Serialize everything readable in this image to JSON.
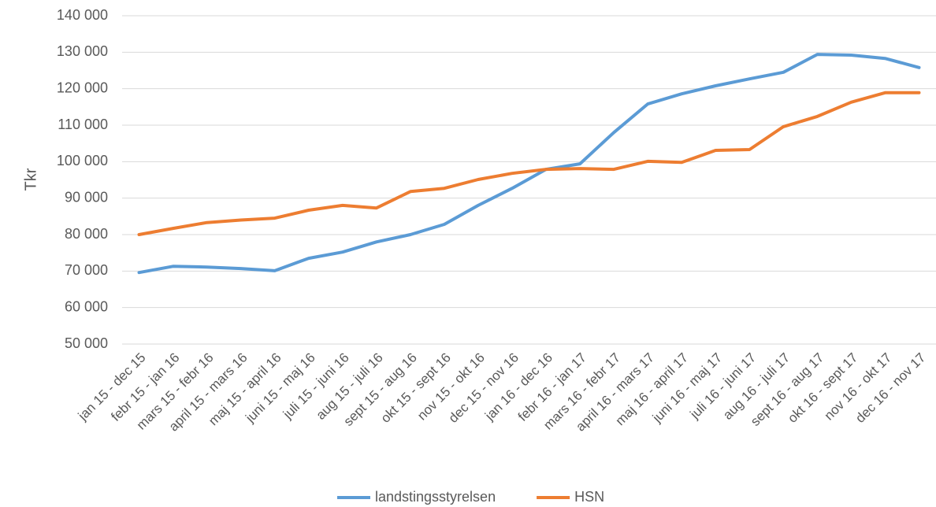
{
  "chart_data": {
    "type": "line",
    "y_label": "Tkr",
    "categories": [
      "jan 15 - dec 15",
      "febr 15 - jan 16",
      "mars 15 - febr 16",
      "april 15 - mars 16",
      "maj 15 - april 16",
      "juni 15 - maj 16",
      "juli 15 - juni 16",
      "aug 15 - juli 16",
      "sept 15 - aug 16",
      "okt 15 - sept 16",
      "nov 15 - okt 16",
      "dec 15 - nov 16",
      "jan 16 - dec 16",
      "febr 16 - jan 17",
      "mars 16 - febr 17",
      "april 16 - mars 17",
      "maj 16 - april 17",
      "juni 16 - maj 17",
      "juli 16 - juni 17",
      "aug 16 - juli 17",
      "sept 16 - aug 17",
      "okt 16 - sept 17",
      "nov 16 - okt 17",
      "dec 16 - nov 17"
    ],
    "series": [
      {
        "name": "landstingsstyrelsen",
        "color": "#5b9bd5",
        "values": [
          69600,
          71300,
          71100,
          70700,
          70100,
          73500,
          75200,
          78000,
          80000,
          82800,
          88000,
          92700,
          97900,
          99400,
          108000,
          115800,
          118600,
          120800,
          122700,
          124500,
          129400,
          129200,
          128300,
          125800
        ]
      },
      {
        "name": "HSN",
        "color": "#ed7d31",
        "values": [
          80000,
          81700,
          83300,
          84000,
          84500,
          86700,
          88000,
          87300,
          91800,
          92700,
          95100,
          96800,
          97900,
          98100,
          97900,
          100100,
          99800,
          103100,
          103300,
          109600,
          112400,
          116300,
          118900,
          118900
        ]
      }
    ],
    "ylim": [
      50000,
      140000
    ],
    "yticks": [
      {
        "value": 50000,
        "label": "50 000"
      },
      {
        "value": 60000,
        "label": "60 000"
      },
      {
        "value": 70000,
        "label": "70 000"
      },
      {
        "value": 80000,
        "label": "80 000"
      },
      {
        "value": 90000,
        "label": "90 000"
      },
      {
        "value": 100000,
        "label": "100 000"
      },
      {
        "value": 110000,
        "label": "110 000"
      },
      {
        "value": 120000,
        "label": "120 000"
      },
      {
        "value": 130000,
        "label": "130 000"
      },
      {
        "value": 140000,
        "label": "140 000"
      }
    ],
    "grid": true,
    "legend": "bottom"
  }
}
